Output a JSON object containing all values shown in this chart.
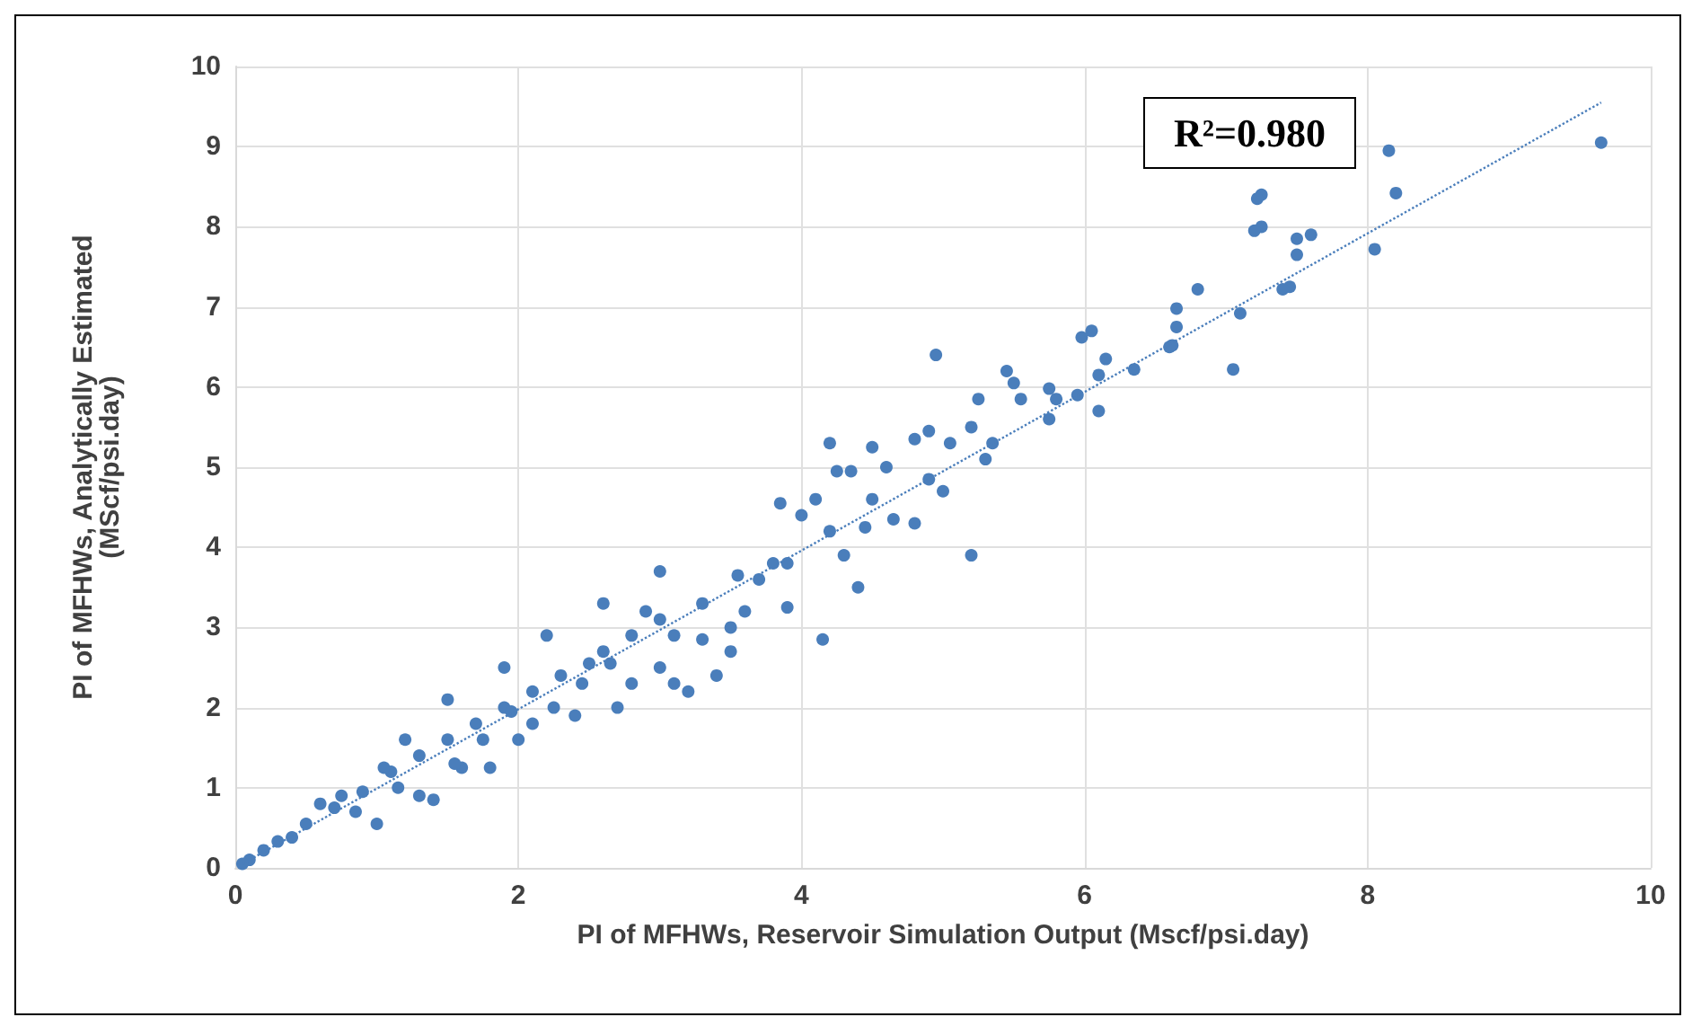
{
  "chart_data": {
    "type": "scatter",
    "xlabel": "PI of MFHWs, Reservoir Simulation Output (Mscf/psi.day)",
    "ylabel": "PI of MFHWs, Analytically Estimated\n(MScf/psi.day)",
    "xlim": [
      0,
      10
    ],
    "ylim": [
      0,
      10
    ],
    "xticks": [
      0,
      2,
      4,
      6,
      8,
      10
    ],
    "yticks": [
      0,
      1,
      2,
      3,
      4,
      5,
      6,
      7,
      8,
      9,
      10
    ],
    "grid": true,
    "marker": "circle",
    "annotations": [
      "R²=0.980"
    ],
    "series": [
      {
        "color": "#4a7ebb",
        "x": [
          9.65,
          8.15,
          8.2,
          8.05,
          7.25,
          7.22,
          7.25,
          7.2,
          7.6,
          7.5,
          7.5,
          7.45,
          7.4,
          7.1,
          7.05,
          6.8,
          6.65,
          6.65,
          6.62,
          6.6,
          6.35,
          6.15,
          6.05,
          6.1,
          6.1,
          5.98,
          5.95,
          5.8,
          5.75,
          5.75,
          5.55,
          5.5,
          5.45,
          5.25,
          5.2,
          5.2,
          4.95,
          5.35,
          5.3,
          5.05,
          4.9,
          4.8,
          4.9,
          5.0,
          4.6,
          4.5,
          4.35,
          4.2,
          4.25,
          4.8,
          4.65,
          4.45,
          4.5,
          4.1,
          4.0,
          3.85,
          4.4,
          4.15,
          3.9,
          4.3,
          4.2,
          3.55,
          3.6,
          3.5,
          3.4,
          3.1,
          3.2,
          3.8,
          3.7,
          3.3,
          3.0,
          2.8,
          2.6,
          2.5,
          2.3,
          2.1,
          1.9,
          1.7,
          1.5,
          1.3,
          1.1,
          0.9,
          0.7,
          0.5,
          0.3,
          0.1,
          0.05,
          2.2,
          1.9,
          2.6,
          3.0,
          1.5,
          2.9,
          2.0,
          2.4,
          1.8,
          1.4,
          1.0,
          2.8,
          1.6,
          1.3,
          0.6,
          1.2,
          2.7,
          3.3,
          3.5,
          3.9,
          2.45,
          2.25,
          1.75,
          1.15,
          0.85,
          3.1,
          2.1,
          1.55,
          0.4,
          0.2,
          3.0,
          2.65,
          1.95,
          1.05,
          0.75
        ],
        "values": [
          9.05,
          8.95,
          8.42,
          7.72,
          8.4,
          8.35,
          8.0,
          7.95,
          7.9,
          7.85,
          7.65,
          7.25,
          7.22,
          6.92,
          6.22,
          7.22,
          6.98,
          6.75,
          6.52,
          6.5,
          6.22,
          6.35,
          6.7,
          6.15,
          5.7,
          6.62,
          5.9,
          5.85,
          5.6,
          5.98,
          5.85,
          6.05,
          6.2,
          5.85,
          5.5,
          3.9,
          6.4,
          5.3,
          5.1,
          5.3,
          5.45,
          5.35,
          4.85,
          4.7,
          5.0,
          5.25,
          4.95,
          5.3,
          4.95,
          4.3,
          4.35,
          4.25,
          4.6,
          4.6,
          4.4,
          4.55,
          3.5,
          2.85,
          3.25,
          3.9,
          4.2,
          3.65,
          3.2,
          2.7,
          2.4,
          2.3,
          2.2,
          3.8,
          3.6,
          3.3,
          3.1,
          2.9,
          2.7,
          2.55,
          2.4,
          2.2,
          2.0,
          1.8,
          1.6,
          1.4,
          1.2,
          0.95,
          0.75,
          0.55,
          0.33,
          0.1,
          0.05,
          2.9,
          2.5,
          3.3,
          3.7,
          2.1,
          3.2,
          1.6,
          1.9,
          1.25,
          0.85,
          0.55,
          2.3,
          1.25,
          0.9,
          0.8,
          1.6,
          2.0,
          2.85,
          3.0,
          3.8,
          2.3,
          2.0,
          1.6,
          1.0,
          0.7,
          2.9,
          1.8,
          1.3,
          0.38,
          0.22,
          2.5,
          2.55,
          1.95,
          1.25,
          0.9
        ]
      },
      {
        "type": "line",
        "color": "#4a7ebb",
        "line_style": "dotted",
        "marker": "none",
        "x": [
          0.05,
          9.65
        ],
        "values": [
          0.05,
          9.55
        ]
      }
    ]
  }
}
